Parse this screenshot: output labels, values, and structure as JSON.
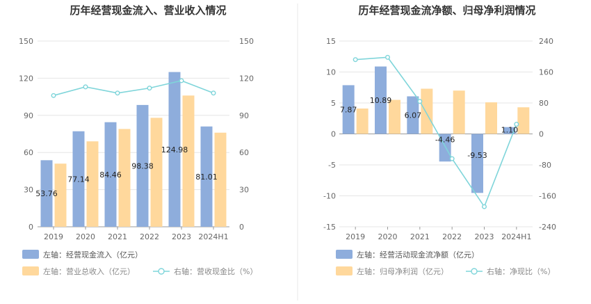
{
  "colors": {
    "bar_primary": "#8EADDC",
    "bar_secondary": "#FFD89C",
    "line": "#7FD5DA",
    "grid": "#E6E6E6",
    "axis": "#999999",
    "divider": "#E8E8E8"
  },
  "chart_data": [
    {
      "type": "bar",
      "title": "历年经营现金流入、营业收入情况",
      "categories": [
        "2019",
        "2020",
        "2021",
        "2022",
        "2023",
        "2024H1"
      ],
      "y_left": {
        "ticks": [
          "0",
          "30",
          "60",
          "90",
          "120",
          "150"
        ],
        "min": 0,
        "max": 150
      },
      "y_right": {
        "ticks": [
          "0",
          "30",
          "60",
          "90",
          "120",
          "150"
        ],
        "min": 0,
        "max": 150
      },
      "series": [
        {
          "name": "左轴：经营现金流入（亿元）",
          "axis": "left",
          "kind": "bar",
          "values": [
            53.76,
            77.14,
            84.46,
            98.38,
            124.98,
            81.01
          ],
          "labels": [
            "53.76",
            "77.14",
            "84.46",
            "98.38",
            "124.98",
            "81.01"
          ]
        },
        {
          "name": "左轴：营业总收入（亿元）",
          "axis": "left",
          "kind": "bar",
          "values": [
            51,
            69,
            79,
            88,
            106,
            76
          ]
        },
        {
          "name": "右轴：营收现金比（%）",
          "axis": "right",
          "kind": "line",
          "values": [
            106,
            113,
            108,
            112,
            118,
            108
          ]
        }
      ],
      "legend": {
        "placement": "bottom"
      }
    },
    {
      "type": "bar",
      "title": "历年经营现金流净额、归母净利润情况",
      "categories": [
        "2019",
        "2020",
        "2021",
        "2022",
        "2023",
        "2024H1"
      ],
      "y_left": {
        "ticks": [
          "-15",
          "-10",
          "-5",
          "0",
          "5",
          "10",
          "15"
        ],
        "min": -15,
        "max": 15
      },
      "y_right": {
        "ticks": [
          "-240",
          "-160",
          "-80",
          "0",
          "80",
          "160",
          "240"
        ],
        "min": -240,
        "max": 240
      },
      "series": [
        {
          "name": "左轴：经营活动现金流净额（亿元）",
          "axis": "left",
          "kind": "bar",
          "values": [
            7.87,
            10.89,
            6.07,
            -4.46,
            -9.53,
            1.1
          ],
          "labels": [
            "7.87",
            "10.89",
            "6.07",
            "-4.46",
            "-9.53",
            "1.10"
          ]
        },
        {
          "name": "左轴：归母净利润（亿元）",
          "axis": "left",
          "kind": "bar",
          "values": [
            4.1,
            5.5,
            7.3,
            7.0,
            5.1,
            4.3
          ]
        },
        {
          "name": "右轴：净现比（%）",
          "axis": "right",
          "kind": "line",
          "values": [
            192,
            198,
            84,
            -64,
            -188,
            25
          ]
        }
      ],
      "legend": {
        "placement": "bottom"
      }
    }
  ]
}
